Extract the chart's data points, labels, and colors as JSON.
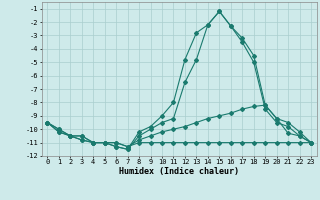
{
  "xlabel": "Humidex (Indice chaleur)",
  "background_color": "#ceeaea",
  "grid_color": "#aacece",
  "line_color": "#1a7a6e",
  "xlim": [
    -0.5,
    23.5
  ],
  "ylim": [
    -12,
    -0.5
  ],
  "xticks": [
    0,
    1,
    2,
    3,
    4,
    5,
    6,
    7,
    8,
    9,
    10,
    11,
    12,
    13,
    14,
    15,
    16,
    17,
    18,
    19,
    20,
    21,
    22,
    23
  ],
  "yticks": [
    -1,
    -2,
    -3,
    -4,
    -5,
    -6,
    -7,
    -8,
    -9,
    -10,
    -11,
    -12
  ],
  "series": [
    {
      "x": [
        0,
        1,
        2,
        3,
        4,
        5,
        6,
        7,
        8,
        9,
        10,
        11,
        12,
        13,
        14,
        15,
        16,
        17,
        18,
        19,
        20,
        21,
        22,
        23
      ],
      "y": [
        -9.5,
        -10.2,
        -10.5,
        -10.8,
        -11.0,
        -11.0,
        -11.3,
        -11.5,
        -10.2,
        -9.8,
        -9.0,
        -8.0,
        -4.8,
        -2.8,
        -2.2,
        -1.2,
        -2.3,
        -3.2,
        -4.5,
        -8.2,
        -9.2,
        -9.5,
        -10.2,
        -11.0
      ]
    },
    {
      "x": [
        0,
        1,
        2,
        3,
        4,
        5,
        6,
        7,
        8,
        9,
        10,
        11,
        12,
        13,
        14,
        15,
        16,
        17,
        18,
        19,
        20,
        21,
        22,
        23
      ],
      "y": [
        -9.5,
        -10.2,
        -10.5,
        -10.8,
        -11.0,
        -11.0,
        -11.3,
        -11.5,
        -10.5,
        -10.0,
        -9.5,
        -9.2,
        -6.5,
        -4.8,
        -2.2,
        -1.2,
        -2.3,
        -3.5,
        -5.0,
        -8.5,
        -9.5,
        -9.8,
        -10.5,
        -11.0
      ]
    },
    {
      "x": [
        0,
        1,
        2,
        3,
        4,
        5,
        6,
        7,
        8,
        9,
        10,
        11,
        12,
        13,
        14,
        15,
        16,
        17,
        18,
        19,
        20,
        21,
        22,
        23
      ],
      "y": [
        -9.5,
        -10.0,
        -10.5,
        -10.5,
        -11.0,
        -11.0,
        -11.0,
        -11.3,
        -11.0,
        -11.0,
        -11.0,
        -11.0,
        -11.0,
        -11.0,
        -11.0,
        -11.0,
        -11.0,
        -11.0,
        -11.0,
        -11.0,
        -11.0,
        -11.0,
        -11.0,
        -11.0
      ]
    },
    {
      "x": [
        0,
        1,
        2,
        3,
        4,
        5,
        6,
        7,
        8,
        9,
        10,
        11,
        12,
        13,
        14,
        15,
        16,
        17,
        18,
        19,
        20,
        21,
        22,
        23
      ],
      "y": [
        -9.5,
        -10.0,
        -10.5,
        -10.5,
        -11.0,
        -11.0,
        -11.0,
        -11.3,
        -10.8,
        -10.5,
        -10.2,
        -10.0,
        -9.8,
        -9.5,
        -9.2,
        -9.0,
        -8.8,
        -8.5,
        -8.3,
        -8.2,
        -9.2,
        -10.3,
        -10.5,
        -11.0
      ]
    }
  ]
}
